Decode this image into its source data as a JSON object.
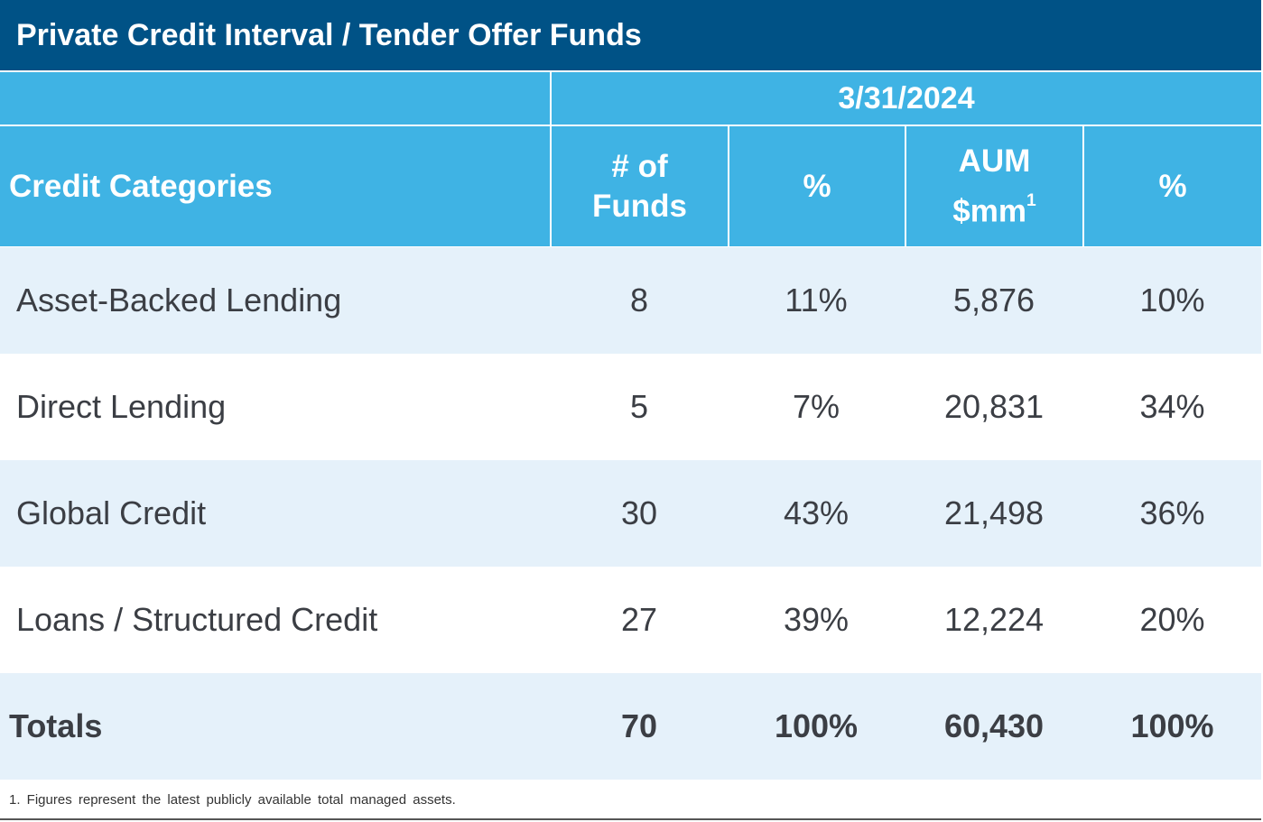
{
  "title": "Private Credit Interval / Tender Offer Funds",
  "date_header": "3/31/2024",
  "columns": {
    "category": "Credit Categories",
    "num_funds_line1": "# of",
    "num_funds_line2": "Funds",
    "pct_funds": "%",
    "aum_line1": "AUM",
    "aum_line2": "$mm",
    "aum_footnote_mark": "1",
    "pct_aum": "%"
  },
  "rows": [
    {
      "category": "Asset-Backed Lending",
      "num_funds": "8",
      "pct_funds": "11%",
      "aum": "5,876",
      "pct_aum": "10%"
    },
    {
      "category": "Direct Lending",
      "num_funds": "5",
      "pct_funds": "7%",
      "aum": "20,831",
      "pct_aum": "34%"
    },
    {
      "category": "Global Credit",
      "num_funds": "30",
      "pct_funds": "43%",
      "aum": "21,498",
      "pct_aum": "36%"
    },
    {
      "category": "Loans / Structured Credit",
      "num_funds": "27",
      "pct_funds": "39%",
      "aum": "12,224",
      "pct_aum": "20%"
    }
  ],
  "totals": {
    "label": "Totals",
    "num_funds": "70",
    "pct_funds": "100%",
    "aum": "60,430",
    "pct_aum": "100%"
  },
  "footnote": "1. Figures represent the latest publicly available total managed assets.",
  "colors": {
    "title_bg": "#005286",
    "header_bg": "#3fb3e4",
    "row_alt_bg": "#e5f1fa",
    "text": "#3b3e44"
  }
}
